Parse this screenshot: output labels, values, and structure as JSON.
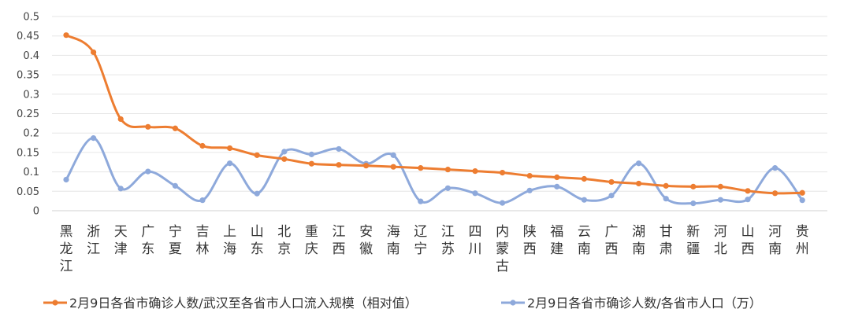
{
  "chart_data": {
    "type": "line",
    "smooth": true,
    "categories": [
      "黑龙江",
      "浙江",
      "天津",
      "广东",
      "宁夏",
      "吉林",
      "上海",
      "山东",
      "北京",
      "重庆",
      "江西",
      "安徽",
      "海南",
      "辽宁",
      "江苏",
      "四川",
      "内蒙古",
      "陕西",
      "福建",
      "云南",
      "广西",
      "湖南",
      "甘肃",
      "新疆",
      "河北",
      "山西",
      "河南",
      "贵州"
    ],
    "ylim": [
      0,
      0.5
    ],
    "yticks": [
      "0",
      "0.05",
      "0.1",
      "0.15",
      "0.2",
      "0.25",
      "0.3",
      "0.35",
      "0.4",
      "0.45",
      "0.5"
    ],
    "grid": true,
    "legend_position": "bottom",
    "series": [
      {
        "name": "2月9日各省市确诊人数/武汉至各省市人口流入规模（相对值）",
        "color": "#ED7D31",
        "values": [
          0.452,
          0.408,
          0.236,
          0.216,
          0.212,
          0.167,
          0.161,
          0.143,
          0.133,
          0.121,
          0.118,
          0.116,
          0.113,
          0.11,
          0.106,
          0.102,
          0.098,
          0.09,
          0.086,
          0.082,
          0.074,
          0.07,
          0.064,
          0.062,
          0.062,
          0.051,
          0.045,
          0.046
        ]
      },
      {
        "name": "2月9日各省市确诊人数/各省市人口（万）",
        "color": "#8EA9DB",
        "values": [
          0.08,
          0.187,
          0.057,
          0.101,
          0.064,
          0.027,
          0.122,
          0.044,
          0.152,
          0.145,
          0.159,
          0.121,
          0.143,
          0.024,
          0.058,
          0.045,
          0.02,
          0.052,
          0.062,
          0.028,
          0.039,
          0.122,
          0.031,
          0.019,
          0.028,
          0.029,
          0.11,
          0.027
        ]
      }
    ]
  }
}
